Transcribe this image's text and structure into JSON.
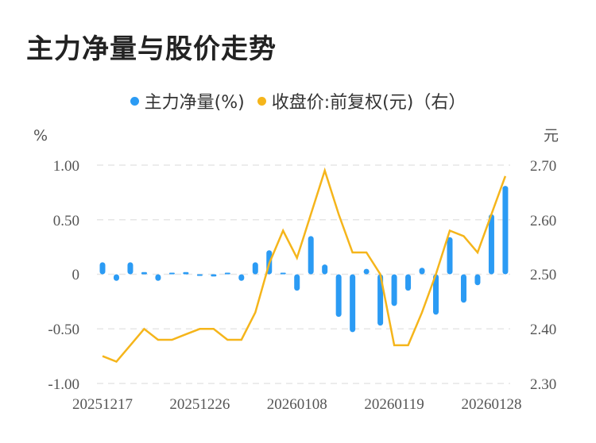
{
  "title": "主力净量与股价走势",
  "legend": [
    {
      "label": "主力净量(%)",
      "color": "#2B9BF4"
    },
    {
      "label": "收盘价:前复权(元)（右）",
      "color": "#F5B51B"
    }
  ],
  "axes": {
    "left_unit": "%",
    "right_unit": "元",
    "left_ticks": [
      "1.00",
      "0.50",
      "0",
      "-0.50",
      "-1.00"
    ],
    "right_ticks": [
      "2.70",
      "2.60",
      "2.50",
      "2.40",
      "2.30"
    ]
  },
  "chart_data": {
    "type": "bar+line",
    "title": "主力净量与股价走势",
    "xlabel": "",
    "ylabel_left": "%",
    "ylabel_right": "元",
    "ylim_left": [
      -1.0,
      1.0
    ],
    "ylim_right": [
      2.3,
      2.7
    ],
    "grid": true,
    "legend_position": "top",
    "x_tick_labels": [
      "20251217",
      "20251226",
      "20260108",
      "20260119",
      "20260128"
    ],
    "x_tick_indices": [
      0,
      7,
      14,
      21,
      28
    ],
    "series": [
      {
        "name": "主力净量(%)",
        "type": "bar",
        "axis": "left",
        "color": "#2B9BF4",
        "values": [
          0.11,
          -0.06,
          0.11,
          0.02,
          -0.06,
          0.01,
          0.02,
          -0.01,
          -0.02,
          0.01,
          -0.06,
          0.11,
          0.22,
          0.01,
          -0.15,
          0.35,
          0.09,
          -0.39,
          -0.53,
          0.05,
          -0.47,
          -0.29,
          -0.15,
          0.06,
          -0.37,
          0.34,
          -0.26,
          -0.1,
          0.55,
          0.81
        ]
      },
      {
        "name": "收盘价:前复权(元)（右）",
        "type": "line",
        "axis": "right",
        "color": "#F5B51B",
        "values": [
          2.35,
          2.34,
          2.37,
          2.4,
          2.38,
          2.38,
          2.39,
          2.4,
          2.4,
          2.38,
          2.38,
          2.43,
          2.52,
          2.58,
          2.53,
          2.61,
          2.69,
          2.61,
          2.54,
          2.54,
          2.5,
          2.37,
          2.37,
          2.43,
          2.5,
          2.58,
          2.57,
          2.54,
          2.61,
          2.68
        ]
      }
    ]
  }
}
